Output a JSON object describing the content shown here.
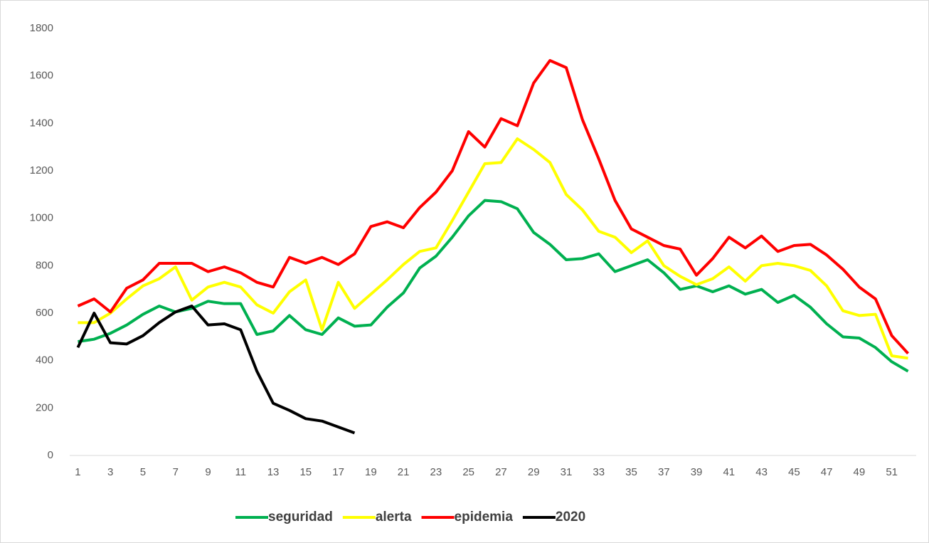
{
  "chart_data": {
    "type": "line",
    "categories": [
      "1",
      null,
      "3",
      null,
      "5",
      null,
      "7",
      null,
      "9",
      null,
      "11",
      null,
      "13",
      null,
      "15",
      null,
      "17",
      null,
      "19",
      null,
      "21",
      null,
      "23",
      null,
      "25",
      null,
      "27",
      null,
      "29",
      null,
      "31",
      null,
      "33",
      null,
      "35",
      null,
      "37",
      null,
      "39",
      null,
      "41",
      null,
      "43",
      null,
      "45",
      null,
      "47",
      null,
      "49",
      null,
      "51",
      null
    ],
    "series": [
      {
        "name": "seguridad",
        "color": "#00b050",
        "values": [
          480,
          490,
          515,
          550,
          595,
          630,
          605,
          620,
          650,
          640,
          640,
          510,
          525,
          590,
          530,
          510,
          580,
          545,
          550,
          625,
          685,
          790,
          840,
          920,
          1010,
          1075,
          1070,
          1040,
          940,
          890,
          825,
          830,
          850,
          775,
          800,
          825,
          770,
          700,
          715,
          690,
          715,
          680,
          700,
          645,
          675,
          625,
          555,
          500,
          495,
          455,
          395,
          355
        ]
      },
      {
        "name": "alerta",
        "color": "#ffff00",
        "values": [
          560,
          560,
          600,
          660,
          715,
          745,
          795,
          655,
          710,
          730,
          710,
          635,
          600,
          690,
          740,
          530,
          730,
          620,
          680,
          740,
          805,
          860,
          875,
          990,
          1110,
          1230,
          1235,
          1335,
          1290,
          1235,
          1100,
          1035,
          945,
          920,
          855,
          905,
          800,
          755,
          720,
          745,
          795,
          735,
          800,
          810,
          800,
          780,
          715,
          610,
          590,
          595,
          420,
          410
        ]
      },
      {
        "name": "epidemia",
        "color": "#ff0000",
        "values": [
          630,
          660,
          605,
          705,
          740,
          810,
          810,
          810,
          775,
          795,
          770,
          730,
          710,
          835,
          810,
          835,
          805,
          850,
          965,
          985,
          960,
          1045,
          1110,
          1200,
          1365,
          1300,
          1420,
          1390,
          1570,
          1665,
          1635,
          1415,
          1250,
          1075,
          955,
          920,
          885,
          870,
          760,
          830,
          920,
          875,
          925,
          860,
          885,
          890,
          845,
          785,
          710,
          660,
          505,
          430
        ]
      },
      {
        "name": "2020",
        "color": "#000000",
        "values": [
          455,
          600,
          475,
          470,
          505,
          560,
          605,
          630,
          550,
          555,
          530,
          355,
          220,
          190,
          155,
          145,
          120,
          95,
          null,
          null,
          null,
          null,
          null,
          null,
          null,
          null,
          null,
          null,
          null,
          null,
          null,
          null,
          null,
          null,
          null,
          null,
          null,
          null,
          null,
          null,
          null,
          null,
          null,
          null,
          null,
          null,
          null,
          null,
          null,
          null,
          null,
          null
        ]
      }
    ],
    "ylim": [
      0,
      1800
    ],
    "yticks": [
      0,
      200,
      400,
      600,
      800,
      1000,
      1200,
      1400,
      1600,
      1800
    ],
    "legend": "bottom"
  }
}
